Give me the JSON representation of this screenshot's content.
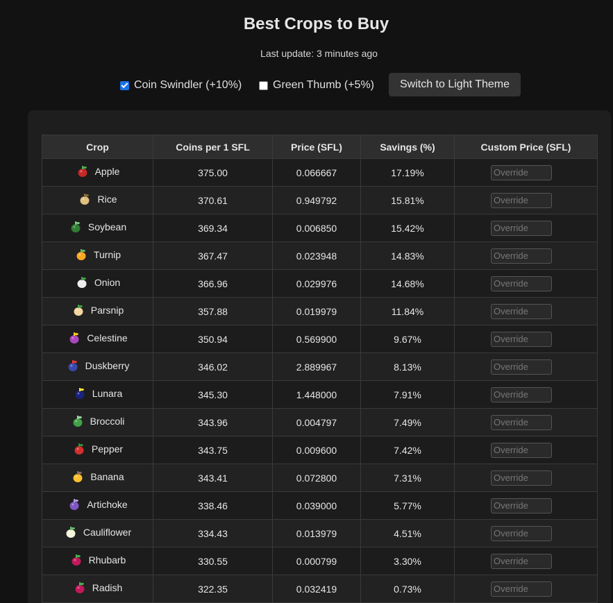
{
  "header": {
    "title": "Best Crops to Buy",
    "last_update": "Last update: 3 minutes ago"
  },
  "controls": {
    "coin_swindler": {
      "label": "Coin Swindler (+10%)",
      "checked": true
    },
    "green_thumb": {
      "label": "Green Thumb (+5%)",
      "checked": false
    },
    "theme_button": "Switch to Light Theme"
  },
  "table": {
    "columns": [
      "Crop",
      "Coins per 1 SFL",
      "Price (SFL)",
      "Savings (%)",
      "Custom Price (SFL)"
    ],
    "override_placeholder": "Override",
    "rows": [
      {
        "crop": "Apple",
        "coins": "375.00",
        "price": "0.066667",
        "savings": "17.19%",
        "icon": "apple-icon",
        "colors": [
          "#c62828",
          "#4caf50"
        ]
      },
      {
        "crop": "Rice",
        "coins": "370.61",
        "price": "0.949792",
        "savings": "15.81%",
        "icon": "rice-icon",
        "colors": [
          "#e0c080",
          "#8a6d3b"
        ]
      },
      {
        "crop": "Soybean",
        "coins": "369.34",
        "price": "0.006850",
        "savings": "15.42%",
        "icon": "soybean-icon",
        "colors": [
          "#2e7d32",
          "#81c784"
        ]
      },
      {
        "crop": "Turnip",
        "coins": "367.47",
        "price": "0.023948",
        "savings": "14.83%",
        "icon": "turnip-icon",
        "colors": [
          "#f9a825",
          "#66bb6a"
        ]
      },
      {
        "crop": "Onion",
        "coins": "366.96",
        "price": "0.029976",
        "savings": "14.68%",
        "icon": "onion-icon",
        "colors": [
          "#eeeeee",
          "#43a047"
        ]
      },
      {
        "crop": "Parsnip",
        "coins": "357.88",
        "price": "0.019979",
        "savings": "11.84%",
        "icon": "parsnip-icon",
        "colors": [
          "#f5d6a0",
          "#43a047"
        ]
      },
      {
        "crop": "Celestine",
        "coins": "350.94",
        "price": "0.569900",
        "savings": "9.67%",
        "icon": "celestine-icon",
        "colors": [
          "#ab47bc",
          "#ffca28"
        ]
      },
      {
        "crop": "Duskberry",
        "coins": "346.02",
        "price": "2.889967",
        "savings": "8.13%",
        "icon": "duskberry-icon",
        "colors": [
          "#3949ab",
          "#e53935"
        ]
      },
      {
        "crop": "Lunara",
        "coins": "345.30",
        "price": "1.448000",
        "savings": "7.91%",
        "icon": "lunara-icon",
        "colors": [
          "#1a237e",
          "#ffeb3b"
        ]
      },
      {
        "crop": "Broccoli",
        "coins": "343.96",
        "price": "0.004797",
        "savings": "7.49%",
        "icon": "broccoli-icon",
        "colors": [
          "#43a047",
          "#a5d6a7"
        ]
      },
      {
        "crop": "Pepper",
        "coins": "343.75",
        "price": "0.009600",
        "savings": "7.42%",
        "icon": "pepper-icon",
        "colors": [
          "#d32f2f",
          "#388e3c"
        ]
      },
      {
        "crop": "Banana",
        "coins": "343.41",
        "price": "0.072800",
        "savings": "7.31%",
        "icon": "banana-icon",
        "colors": [
          "#fbc02d",
          "#8d6e63"
        ]
      },
      {
        "crop": "Artichoke",
        "coins": "338.46",
        "price": "0.039000",
        "savings": "5.77%",
        "icon": "artichoke-icon",
        "colors": [
          "#7e57c2",
          "#b39ddb"
        ]
      },
      {
        "crop": "Cauliflower",
        "coins": "334.43",
        "price": "0.013979",
        "savings": "4.51%",
        "icon": "cauliflower-icon",
        "colors": [
          "#f5f5dc",
          "#66bb6a"
        ]
      },
      {
        "crop": "Rhubarb",
        "coins": "330.55",
        "price": "0.000799",
        "savings": "3.30%",
        "icon": "rhubarb-icon",
        "colors": [
          "#c2185b",
          "#4caf50"
        ]
      },
      {
        "crop": "Radish",
        "coins": "322.35",
        "price": "0.032419",
        "savings": "0.73%",
        "icon": "radish-icon",
        "colors": [
          "#c2185b",
          "#4caf50"
        ]
      }
    ]
  }
}
